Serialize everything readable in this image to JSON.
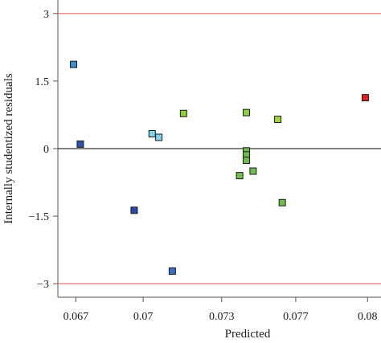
{
  "chart_data": {
    "type": "scatter",
    "title": "",
    "xlabel": "Predicted",
    "ylabel": "Internally studentized residuals",
    "xlim": [
      0.0662,
      0.0806
    ],
    "ylim": [
      -3.3,
      3.3
    ],
    "x_ticks": [
      {
        "value": 0.067,
        "label": "0.067"
      },
      {
        "value": 0.07,
        "label": "0.07"
      },
      {
        "value": 0.0735,
        "label": "0.073"
      },
      {
        "value": 0.0768,
        "label": "0.077"
      },
      {
        "value": 0.08,
        "label": "0.08"
      }
    ],
    "y_ticks": [
      {
        "value": 3,
        "label": "3"
      },
      {
        "value": 1.5,
        "label": "1.5"
      },
      {
        "value": 0,
        "label": "0"
      },
      {
        "value": -1.5,
        "label": "−1.5"
      },
      {
        "value": -3,
        "label": "−3"
      }
    ],
    "reference_lines": [
      {
        "y": 3,
        "color": "#e05050"
      },
      {
        "y": 0,
        "color": "#000000"
      },
      {
        "y": -3,
        "color": "#e05050"
      }
    ],
    "grid": false,
    "points": [
      {
        "x": 0.0669,
        "y": 1.87,
        "color": "#3a8fd6"
      },
      {
        "x": 0.0672,
        "y": 0.1,
        "color": "#2a52b0"
      },
      {
        "x": 0.0696,
        "y": -1.37,
        "color": "#2a48a8"
      },
      {
        "x": 0.0704,
        "y": 0.33,
        "color": "#7fd4e8"
      },
      {
        "x": 0.0707,
        "y": 0.25,
        "color": "#7fd4e8"
      },
      {
        "x": 0.0718,
        "y": 0.78,
        "color": "#8ccf3a"
      },
      {
        "x": 0.0713,
        "y": -2.72,
        "color": "#3a6fc8"
      },
      {
        "x": 0.0743,
        "y": -0.6,
        "color": "#6cc04a"
      },
      {
        "x": 0.0746,
        "y": 0.8,
        "color": "#8ccf3a"
      },
      {
        "x": 0.0746,
        "y": -0.05,
        "color": "#6cc04a"
      },
      {
        "x": 0.0746,
        "y": -0.14,
        "color": "#6cc04a"
      },
      {
        "x": 0.0746,
        "y": -0.26,
        "color": "#6cc04a"
      },
      {
        "x": 0.0749,
        "y": -0.5,
        "color": "#6cc04a"
      },
      {
        "x": 0.076,
        "y": 0.65,
        "color": "#a2d63a"
      },
      {
        "x": 0.0762,
        "y": -1.2,
        "color": "#6cc04a"
      },
      {
        "x": 0.0799,
        "y": 1.13,
        "color": "#e02020"
      }
    ]
  }
}
